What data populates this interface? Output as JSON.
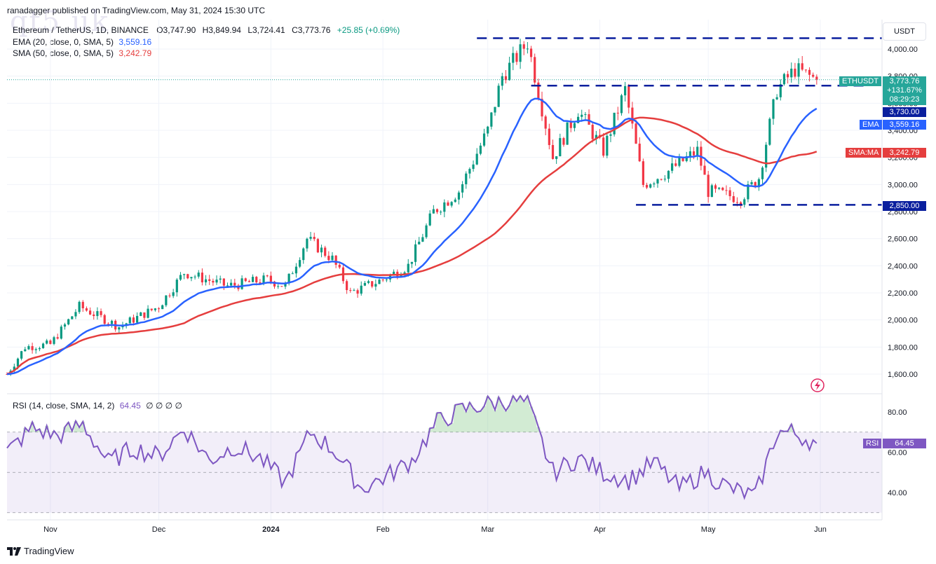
{
  "publisher_line": "ranadagger published on TradingView.com, May 31, 2024 15:30 UTC",
  "watermark": "qt5 uk",
  "symbol_line": {
    "name": "Ethereum / TetherUS, 1D, BINANCE",
    "open": "O3,747.90",
    "high": "H3,849.94",
    "low": "L3,724.41",
    "close": "C3,773.76",
    "change": "+25.85 (+0.69%)"
  },
  "legend": {
    "ema": {
      "label": "EMA (20, close, 0, SMA, 5)",
      "value": "3,559.16"
    },
    "sma": {
      "label": "SMA (50, close, 0, SMA, 5)",
      "value": "3,242.79"
    }
  },
  "rsi_legend": {
    "label": "RSI (14, close, SMA, 14, 2)",
    "value": "64.45",
    "extra": "∅ ∅ ∅ ∅"
  },
  "currency": "USDT",
  "tags": {
    "symbol": "ETHUSDT",
    "price": "3,773.76",
    "pct": "+131.67%",
    "countdown": "08:29:23",
    "resistance": "3,730.00",
    "ema_name": "EMA",
    "ema_value": "3,559.16",
    "sma_name": "SMA:MA",
    "sma_value": "3,242.79",
    "support": "2,850.00",
    "rsi_name": "RSI",
    "rsi_value": "64.45"
  },
  "brand": "TradingView",
  "colors": {
    "up": "#089981",
    "down": "#f23645",
    "ema": "#2962ff",
    "sma": "#e53e3e",
    "rsi": "#7e57c2",
    "dash": "#0a1f9e"
  },
  "chart_data": [
    {
      "type": "candlestick",
      "title": "Ethereum / TetherUS, 1D, BINANCE",
      "ylim": [
        1500,
        4100
      ],
      "y_ticks": [
        "4,000.00",
        "3,800.00",
        "3,600.00",
        "3,400.00",
        "3,200.00",
        "3,000.00",
        "2,800.00",
        "2,600.00",
        "2,400.00",
        "2,200.00",
        "2,000.00",
        "1,800.00",
        "1,600.00"
      ],
      "x_ticks": [
        "Nov",
        "Dec",
        "2024",
        "Feb",
        "Mar",
        "Apr",
        "May",
        "Jun"
      ],
      "approx_close_path": [
        [
          "2023-10-20",
          1600
        ],
        [
          "2023-10-25",
          1800
        ],
        [
          "2023-11-01",
          1820
        ],
        [
          "2023-11-09",
          2100
        ],
        [
          "2023-11-20",
          1950
        ],
        [
          "2023-12-01",
          2100
        ],
        [
          "2023-12-08",
          2350
        ],
        [
          "2023-12-20",
          2250
        ],
        [
          "2023-12-31",
          2300
        ],
        [
          "2024-01-05",
          2250
        ],
        [
          "2024-01-11",
          2600
        ],
        [
          "2024-01-18",
          2450
        ],
        [
          "2024-01-23",
          2200
        ],
        [
          "2024-02-01",
          2300
        ],
        [
          "2024-02-08",
          2400
        ],
        [
          "2024-02-15",
          2800
        ],
        [
          "2024-02-22",
          2950
        ],
        [
          "2024-03-01",
          3400
        ],
        [
          "2024-03-05",
          3800
        ],
        [
          "2024-03-12",
          4050
        ],
        [
          "2024-03-19",
          3200
        ],
        [
          "2024-03-26",
          3550
        ],
        [
          "2024-04-02",
          3250
        ],
        [
          "2024-04-08",
          3700
        ],
        [
          "2024-04-13",
          3000
        ],
        [
          "2024-04-20",
          3100
        ],
        [
          "2024-04-28",
          3250
        ],
        [
          "2024-05-01",
          2950
        ],
        [
          "2024-05-10",
          2900
        ],
        [
          "2024-05-15",
          3050
        ],
        [
          "2024-05-20",
          3700
        ],
        [
          "2024-05-25",
          3850
        ],
        [
          "2024-05-31",
          3773.76
        ]
      ],
      "series": [
        {
          "name": "EMA (20, close, 0, SMA, 5)",
          "last": 3559.16
        },
        {
          "name": "SMA (50, close, 0, SMA, 5)",
          "last": 3242.79
        }
      ],
      "levels": [
        {
          "name": "upper dashed line",
          "value": 4080
        },
        {
          "name": "resistance",
          "value": 3730
        },
        {
          "name": "support",
          "value": 2850
        }
      ],
      "last_close": 3773.76
    },
    {
      "type": "line",
      "title": "RSI (14, close, SMA, 14, 2)",
      "ylim": [
        28,
        90
      ],
      "y_ticks": [
        "80.00",
        "60.00",
        "40.00"
      ],
      "bands": [
        30,
        70
      ],
      "x": [
        "2023-10-20",
        "2023-10-27",
        "2023-11-03",
        "2023-11-10",
        "2023-11-17",
        "2023-11-24",
        "2023-12-01",
        "2023-12-08",
        "2023-12-15",
        "2023-12-22",
        "2023-12-29",
        "2024-01-05",
        "2024-01-12",
        "2024-01-19",
        "2024-01-26",
        "2024-02-02",
        "2024-02-09",
        "2024-02-16",
        "2024-02-23",
        "2024-03-01",
        "2024-03-08",
        "2024-03-12",
        "2024-03-19",
        "2024-03-26",
        "2024-04-02",
        "2024-04-09",
        "2024-04-16",
        "2024-04-23",
        "2024-04-30",
        "2024-05-07",
        "2024-05-14",
        "2024-05-20",
        "2024-05-24",
        "2024-05-31"
      ],
      "values": [
        60,
        72,
        68,
        74,
        55,
        62,
        58,
        72,
        56,
        63,
        57,
        45,
        70,
        60,
        42,
        48,
        56,
        75,
        81,
        84,
        86,
        84,
        50,
        57,
        50,
        46,
        55,
        42,
        50,
        42,
        38,
        70,
        70,
        64.45
      ],
      "last": 64.45
    }
  ]
}
